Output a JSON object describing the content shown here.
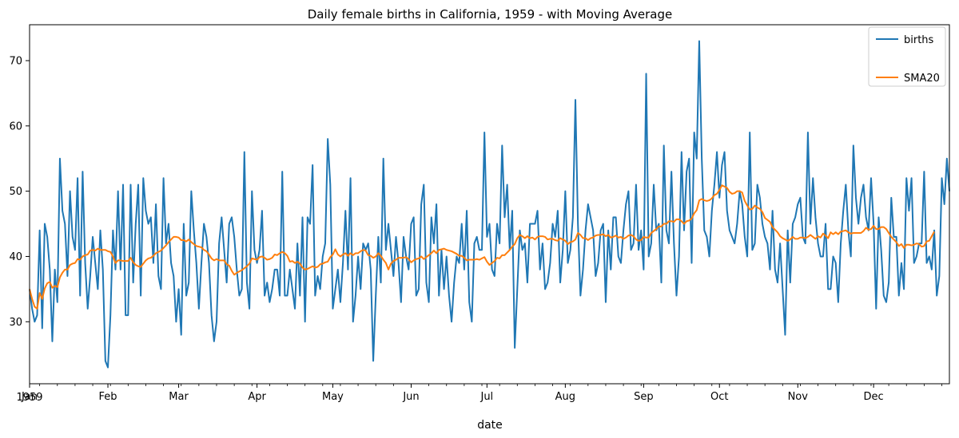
{
  "chart_data": {
    "type": "line",
    "title": "Daily female births in California, 1959 - with Moving Average",
    "xlabel": "date",
    "ylabel": "",
    "year_label": "1959",
    "ylim": [
      20.5,
      75.5
    ],
    "yticks": [
      30,
      40,
      50,
      60,
      70
    ],
    "xlim": [
      0,
      364
    ],
    "xticks": [
      {
        "day": 0,
        "label": "Jan"
      },
      {
        "day": 31,
        "label": "Feb"
      },
      {
        "day": 59,
        "label": "Mar"
      },
      {
        "day": 90,
        "label": "Apr"
      },
      {
        "day": 120,
        "label": "May"
      },
      {
        "day": 151,
        "label": "Jun"
      },
      {
        "day": 181,
        "label": "Jul"
      },
      {
        "day": 212,
        "label": "Aug"
      },
      {
        "day": 243,
        "label": "Sep"
      },
      {
        "day": 273,
        "label": "Oct"
      },
      {
        "day": 304,
        "label": "Nov"
      },
      {
        "day": 334,
        "label": "Dec"
      }
    ],
    "legend_position": "top-right",
    "series": [
      {
        "name": "births",
        "color": "#1f77b4",
        "values": [
          35,
          32,
          30,
          31,
          44,
          29,
          45,
          43,
          38,
          27,
          38,
          33,
          55,
          47,
          45,
          37,
          50,
          43,
          41,
          52,
          34,
          53,
          39,
          32,
          37,
          43,
          39,
          35,
          44,
          38,
          24,
          23,
          31,
          44,
          38,
          50,
          38,
          51,
          31,
          31,
          51,
          36,
          45,
          51,
          34,
          52,
          47,
          45,
          46,
          39,
          48,
          37,
          35,
          52,
          42,
          45,
          39,
          37,
          30,
          35,
          28,
          45,
          34,
          36,
          50,
          44,
          39,
          32,
          39,
          45,
          43,
          39,
          31,
          27,
          30,
          42,
          46,
          41,
          36,
          45,
          46,
          43,
          38,
          34,
          35,
          56,
          36,
          32,
          50,
          41,
          39,
          41,
          47,
          34,
          36,
          33,
          35,
          38,
          38,
          34,
          53,
          34,
          34,
          38,
          35,
          32,
          42,
          34,
          46,
          30,
          46,
          45,
          54,
          34,
          37,
          35,
          40,
          42,
          58,
          51,
          32,
          35,
          38,
          33,
          39,
          47,
          38,
          52,
          30,
          34,
          40,
          35,
          42,
          41,
          42,
          38,
          24,
          34,
          43,
          36,
          55,
          41,
          45,
          41,
          37,
          43,
          39,
          33,
          43,
          40,
          38,
          45,
          46,
          34,
          35,
          48,
          51,
          36,
          33,
          46,
          42,
          48,
          34,
          41,
          35,
          40,
          34,
          30,
          36,
          40,
          39,
          45,
          38,
          47,
          33,
          30,
          42,
          43,
          41,
          41,
          59,
          43,
          45,
          38,
          37,
          45,
          42,
          57,
          46,
          51,
          41,
          47,
          26,
          35,
          44,
          41,
          42,
          36,
          45,
          45,
          45,
          47,
          38,
          42,
          35,
          36,
          39,
          45,
          43,
          47,
          36,
          41,
          50,
          39,
          41,
          46,
          64,
          45,
          34,
          38,
          44,
          48,
          46,
          44,
          37,
          39,
          44,
          45,
          33,
          44,
          38,
          46,
          46,
          40,
          39,
          44,
          48,
          50,
          41,
          42,
          51,
          41,
          44,
          38,
          68,
          40,
          42,
          51,
          44,
          45,
          36,
          57,
          44,
          42,
          53,
          42,
          34,
          40,
          56,
          44,
          53,
          55,
          39,
          59,
          55,
          73,
          55,
          44,
          43,
          40,
          47,
          51,
          56,
          49,
          54,
          56,
          47,
          44,
          43,
          42,
          45,
          50,
          48,
          43,
          40,
          59,
          41,
          42,
          51,
          49,
          45,
          43,
          42,
          38,
          47,
          38,
          36,
          42,
          35,
          28,
          44,
          36,
          45,
          46,
          48,
          49,
          43,
          42,
          59,
          45,
          52,
          46,
          42,
          40,
          40,
          45,
          35,
          35,
          40,
          39,
          33,
          42,
          47,
          51,
          44,
          40,
          57,
          49,
          45,
          49,
          51,
          46,
          44,
          52,
          45,
          32,
          46,
          41,
          34,
          33,
          36,
          49,
          43,
          43,
          34,
          39,
          35,
          52,
          47,
          52,
          39,
          40,
          42,
          42,
          53,
          39,
          40,
          38,
          44,
          34,
          37,
          52,
          48,
          55,
          50
        ]
      },
      {
        "name": "SMA20",
        "color": "#ff7f0e",
        "values": [
          35.0,
          33.5,
          32.3,
          32.0,
          34.4,
          33.5,
          35.1,
          35.9,
          36.1,
          35.2,
          35.5,
          35.3,
          36.8,
          37.5,
          38.0,
          38.0,
          38.7,
          38.9,
          39.0,
          39.6,
          39.5,
          40.0,
          40.2,
          40.3,
          40.9,
          41.0,
          40.9,
          41.2,
          41.0,
          41.0,
          41.0,
          40.8,
          40.7,
          40.0,
          39.0,
          39.4,
          39.4,
          39.3,
          39.3,
          39.3,
          39.8,
          39.1,
          38.7,
          38.5,
          38.4,
          38.9,
          39.4,
          39.7,
          39.8,
          40.1,
          40.5,
          40.7,
          40.9,
          41.3,
          41.7,
          42.2,
          42.6,
          43.0,
          43.0,
          42.9,
          42.5,
          42.5,
          42.3,
          42.6,
          42.2,
          41.9,
          41.6,
          41.5,
          41.4,
          41.0,
          40.8,
          40.3,
          39.7,
          39.4,
          39.6,
          39.4,
          39.4,
          39.4,
          38.8,
          38.6,
          37.8,
          37.2,
          37.5,
          37.7,
          37.9,
          38.2,
          38.5,
          38.9,
          39.7,
          39.6,
          39.5,
          39.9,
          40.0,
          39.8,
          39.5,
          39.6,
          39.8,
          40.3,
          40.2,
          40.5,
          40.7,
          40.5,
          40.1,
          39.2,
          39.3,
          39.0,
          39.2,
          38.9,
          38.3,
          38.0,
          38.1,
          38.3,
          38.5,
          38.3,
          38.4,
          38.8,
          38.9,
          39.1,
          39.2,
          39.9,
          40.3,
          41.1,
          40.3,
          40.0,
          40.3,
          40.5,
          40.1,
          40.5,
          40.2,
          40.5,
          40.5,
          40.8,
          41.0,
          40.9,
          40.2,
          40.1,
          39.8,
          40.0,
          40.5,
          40.1,
          39.5,
          39.0,
          38.0,
          38.9,
          39.3,
          39.5,
          39.8,
          39.8,
          39.8,
          39.9,
          39.6,
          39.1,
          39.4,
          39.6,
          39.7,
          40.0,
          39.6,
          39.9,
          40.2,
          40.5,
          40.9,
          40.5,
          41.0,
          41.1,
          41.2,
          41.0,
          40.9,
          40.8,
          40.6,
          40.4,
          40.1,
          40.1,
          39.8,
          39.4,
          39.5,
          39.5,
          39.5,
          39.6,
          39.5,
          39.7,
          39.9,
          39.2,
          38.7,
          39.0,
          39.3,
          39.8,
          39.7,
          40.2,
          40.2,
          40.6,
          41.0,
          41.5,
          41.9,
          42.8,
          43.3,
          43.1,
          42.8,
          43.1,
          42.8,
          42.9,
          42.6,
          43.0,
          43.1,
          43.1,
          43.0,
          42.6,
          42.7,
          42.7,
          42.5,
          42.4,
          42.8,
          42.6,
          42.4,
          41.9,
          42.2,
          42.3,
          42.6,
          43.6,
          43.3,
          42.8,
          42.8,
          42.5,
          42.8,
          42.9,
          43.2,
          43.3,
          43.3,
          43.4,
          43.1,
          43.3,
          42.9,
          43.0,
          43.2,
          42.9,
          43.0,
          42.7,
          42.9,
          43.2,
          43.3,
          43.1,
          42.6,
          42.4,
          42.5,
          43.0,
          42.9,
          42.9,
          43.6,
          43.9,
          44.2,
          44.6,
          44.6,
          45.0,
          45.0,
          45.4,
          45.4,
          45.3,
          45.7,
          45.7,
          45.4,
          45.0,
          45.4,
          45.5,
          45.8,
          46.6,
          47.1,
          48.6,
          48.8,
          48.6,
          48.5,
          48.6,
          48.9,
          49.4,
          49.6,
          50.2,
          50.9,
          50.7,
          50.5,
          49.9,
          49.6,
          49.7,
          50.0,
          50.0,
          49.8,
          48.5,
          47.8,
          47.2,
          47.3,
          47.8,
          47.5,
          47.3,
          46.8,
          45.9,
          45.6,
          45.3,
          44.5,
          44.1,
          43.7,
          43.1,
          42.8,
          42.6,
          42.4,
          42.6,
          43.0,
          42.7,
          42.7,
          42.9,
          42.9,
          42.8,
          43.0,
          43.3,
          43.0,
          42.7,
          43.1,
          42.9,
          43.5,
          43.2,
          42.8,
          43.7,
          43.4,
          43.7,
          43.4,
          43.8,
          43.9,
          44.0,
          43.7,
          43.5,
          43.6,
          43.6,
          43.6,
          43.6,
          43.9,
          44.4,
          44.1,
          44.2,
          44.7,
          44.2,
          44.2,
          44.5,
          44.5,
          44.2,
          43.6,
          43.0,
          42.6,
          42.2,
          41.6,
          41.9,
          41.3,
          41.8,
          41.8,
          41.7,
          41.8,
          42.0,
          41.9,
          41.5,
          41.6,
          42.3,
          42.4,
          43.1,
          43.8
        ]
      }
    ]
  }
}
